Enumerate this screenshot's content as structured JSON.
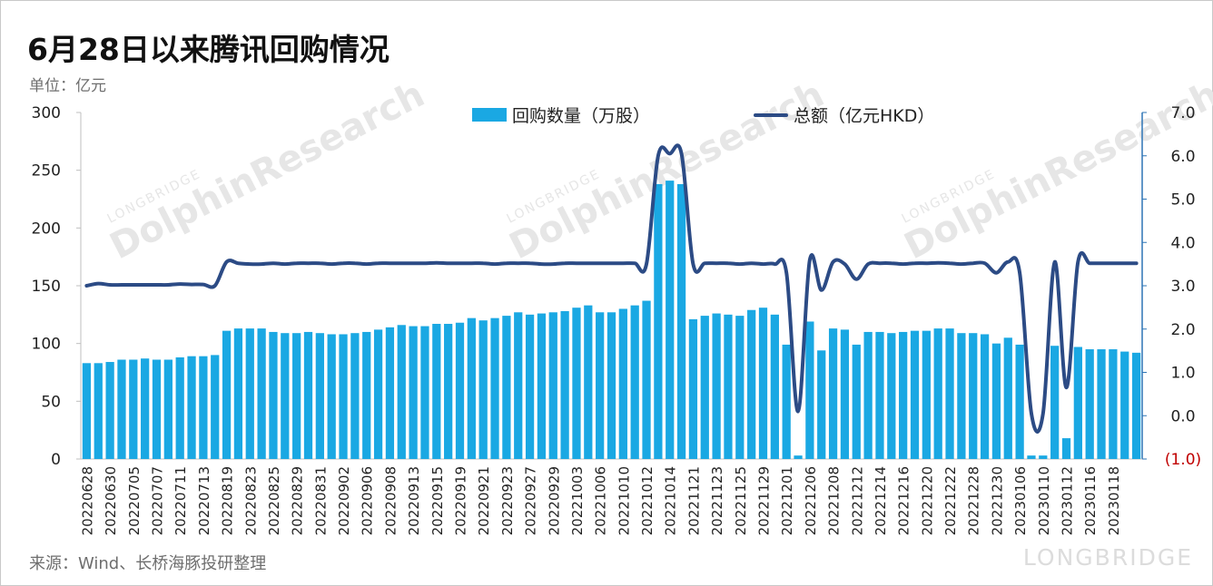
{
  "title": "6月28日以来腾讯回购情况",
  "unit_label": "单位：亿元",
  "source": "来源：Wind、长桥海豚投研整理",
  "watermark": {
    "text": "DolphinResearch",
    "subtext": "LONGBRIDGE",
    "brand": "LONGBRIDGE"
  },
  "colors": {
    "bar": "#1aa8e3",
    "line": "#2c4b85",
    "negative_tick": "#c00000"
  },
  "chart_data": {
    "type": "bar",
    "legend_position": "top",
    "grid": false,
    "xlabel": "",
    "y_left": {
      "min": 0,
      "max": 300,
      "ticks": [
        "0",
        "50",
        "100",
        "150",
        "200",
        "250",
        "300"
      ]
    },
    "y_right": {
      "min": -1.0,
      "max": 7.0,
      "ticks": [
        "(1.0)",
        "0.0",
        "1.0",
        "2.0",
        "3.0",
        "4.0",
        "5.0",
        "6.0",
        "7.0"
      ]
    },
    "x_tick_labels": [
      "20220628",
      "20220630",
      "20220705",
      "20220707",
      "20220711",
      "20220713",
      "20220819",
      "20220823",
      "20220825",
      "20220829",
      "20220831",
      "20220902",
      "20220906",
      "20220908",
      "20220913",
      "20220915",
      "20220919",
      "20220921",
      "20220923",
      "20220927",
      "20220929",
      "20221003",
      "20221006",
      "20221010",
      "20221012",
      "20221014",
      "20221121",
      "20221123",
      "20221125",
      "20221129",
      "20221201",
      "20221206",
      "20221208",
      "20221212",
      "20221214",
      "20221216",
      "20221220",
      "20221222",
      "20221228",
      "20221230",
      "20230106",
      "20230110",
      "20230112",
      "20230116",
      "20230118"
    ],
    "series": [
      {
        "name": "回购数量（万股）",
        "type": "bar",
        "axis": "left",
        "values": [
          83,
          83,
          84,
          86,
          86,
          87,
          86,
          86,
          88,
          89,
          89,
          90,
          111,
          113,
          113,
          113,
          110,
          109,
          109,
          110,
          109,
          108,
          108,
          109,
          110,
          112,
          114,
          116,
          115,
          115,
          117,
          117,
          118,
          122,
          120,
          122,
          124,
          127,
          125,
          126,
          127,
          128,
          131,
          133,
          127,
          127,
          130,
          133,
          137,
          238,
          241,
          238,
          121,
          124,
          126,
          125,
          124,
          129,
          131,
          125,
          99,
          3,
          119,
          94,
          113,
          112,
          99,
          110,
          110,
          109,
          110,
          111,
          111,
          113,
          113,
          109,
          109,
          108,
          100,
          105,
          99,
          3,
          3,
          98,
          18,
          97,
          95,
          95,
          95,
          93,
          92
        ]
      },
      {
        "name": "总额（亿元HKD）",
        "type": "line",
        "axis": "right",
        "values": [
          3.0,
          3.05,
          3.02,
          3.02,
          3.02,
          3.02,
          3.02,
          3.02,
          3.04,
          3.03,
          3.03,
          3.0,
          3.55,
          3.52,
          3.5,
          3.5,
          3.52,
          3.5,
          3.52,
          3.52,
          3.52,
          3.5,
          3.52,
          3.52,
          3.5,
          3.52,
          3.52,
          3.52,
          3.52,
          3.52,
          3.53,
          3.52,
          3.52,
          3.52,
          3.52,
          3.5,
          3.52,
          3.52,
          3.52,
          3.5,
          3.5,
          3.52,
          3.52,
          3.52,
          3.52,
          3.52,
          3.52,
          3.52,
          3.5,
          6.0,
          6.05,
          6.05,
          3.5,
          3.52,
          3.52,
          3.52,
          3.5,
          3.52,
          3.5,
          3.5,
          3.3,
          0.1,
          3.6,
          2.9,
          3.55,
          3.5,
          3.15,
          3.5,
          3.52,
          3.52,
          3.5,
          3.52,
          3.52,
          3.53,
          3.52,
          3.5,
          3.52,
          3.52,
          3.3,
          3.55,
          3.3,
          0.05,
          0.05,
          3.55,
          0.65,
          3.55,
          3.52,
          3.52,
          3.52,
          3.52,
          3.52
        ]
      }
    ]
  }
}
